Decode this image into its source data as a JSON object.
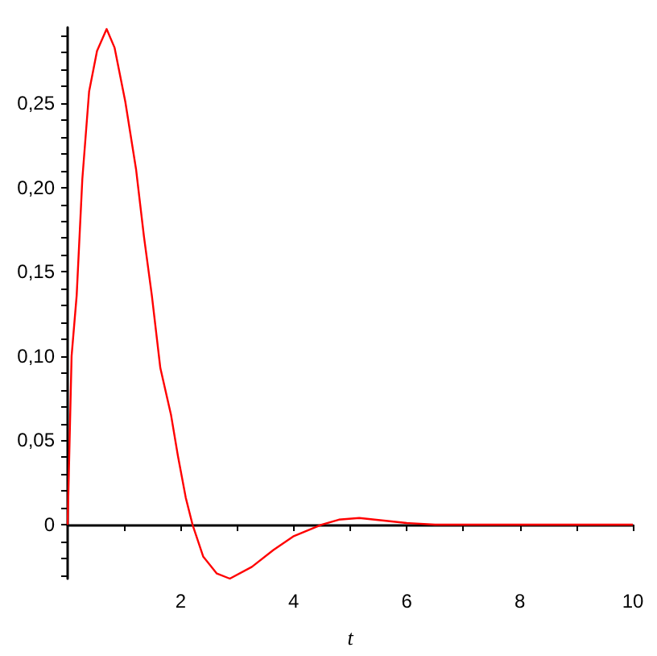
{
  "chart_data": {
    "type": "line",
    "xlabel": "t",
    "marker": "none",
    "line_style": "solid",
    "x": [
      0,
      0.07,
      0.16,
      0.26,
      0.38,
      0.52,
      0.69,
      0.83,
      1.02,
      1.21,
      1.35,
      1.49,
      1.64,
      1.83,
      1.95,
      2.09,
      2.21,
      2.4,
      2.64,
      2.87,
      3.26,
      3.64,
      3.99,
      4.49,
      4.8,
      5.16,
      6,
      6.5,
      7,
      7.5,
      8,
      10
    ],
    "series": [
      {
        "color": "#ff0000",
        "values": [
          0,
          0.1,
          0.136,
          0.205,
          0.257,
          0.281,
          0.294,
          0.283,
          0.251,
          0.211,
          0.171,
          0.136,
          0.093,
          0.065,
          0.041,
          0.016,
          0,
          -0.019,
          -0.029,
          -0.032,
          -0.025,
          -0.015,
          -0.007,
          0,
          0.003,
          0.004,
          0.001,
          0,
          0,
          0,
          0,
          0
        ]
      }
    ],
    "xlim": [
      0,
      10
    ],
    "ylim": [
      -0.032,
      0.295
    ],
    "xticks": [
      {
        "value": 1,
        "label": null
      },
      2,
      {
        "value": 3,
        "label": null
      },
      4,
      {
        "value": 5,
        "label": null
      },
      6,
      {
        "value": 7,
        "label": null
      },
      8,
      {
        "value": 9,
        "label": null
      },
      10
    ],
    "yticks": [
      {
        "value": -0.03,
        "label": null
      },
      {
        "value": -0.02,
        "label": null
      },
      {
        "value": -0.01,
        "label": null
      },
      0,
      {
        "value": 0.01,
        "label": null
      },
      {
        "value": 0.02,
        "label": null
      },
      {
        "value": 0.03,
        "label": null
      },
      {
        "value": 0.04,
        "label": null
      },
      {
        "value": 0.05,
        "label": "0,05"
      },
      {
        "value": 0.06,
        "label": null
      },
      {
        "value": 0.07,
        "label": null
      },
      {
        "value": 0.08,
        "label": null
      },
      {
        "value": 0.09,
        "label": null
      },
      {
        "value": 0.1,
        "label": "0,10"
      },
      {
        "value": 0.11,
        "label": null
      },
      {
        "value": 0.12,
        "label": null
      },
      {
        "value": 0.13,
        "label": null
      },
      {
        "value": 0.14,
        "label": null
      },
      {
        "value": 0.15,
        "label": "0,15"
      },
      {
        "value": 0.16,
        "label": null
      },
      {
        "value": 0.17,
        "label": null
      },
      {
        "value": 0.18,
        "label": null
      },
      {
        "value": 0.19,
        "label": null
      },
      {
        "value": 0.2,
        "label": "0,20"
      },
      {
        "value": 0.21,
        "label": null
      },
      {
        "value": 0.22,
        "label": null
      },
      {
        "value": 0.23,
        "label": null
      },
      {
        "value": 0.24,
        "label": null
      },
      {
        "value": 0.25,
        "label": "0,25"
      },
      {
        "value": 0.26,
        "label": null
      },
      {
        "value": 0.27,
        "label": null
      },
      {
        "value": 0.28,
        "label": null
      },
      {
        "value": 0.29,
        "label": null
      }
    ]
  }
}
